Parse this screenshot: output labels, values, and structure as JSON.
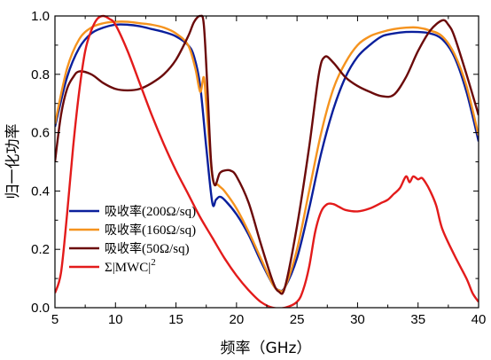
{
  "chart_data": {
    "type": "line",
    "xlabel": "频率（GHz）",
    "ylabel": "归一化功率",
    "xlim": [
      5,
      40
    ],
    "ylim": [
      0.0,
      1.0
    ],
    "x_ticks": [
      "5",
      "10",
      "15",
      "20",
      "25",
      "30",
      "35",
      "40"
    ],
    "y_ticks": [
      "0.0",
      "0.2",
      "0.4",
      "0.6",
      "0.8",
      "1.0"
    ],
    "grid": false,
    "legend_position": "bottom-left",
    "series": [
      {
        "name": "吸收率(200Ω/sq)",
        "color": "#0a1f9c",
        "points": [
          [
            5,
            0.62
          ],
          [
            6,
            0.79
          ],
          [
            7,
            0.89
          ],
          [
            8,
            0.94
          ],
          [
            9,
            0.96
          ],
          [
            10,
            0.97
          ],
          [
            11,
            0.97
          ],
          [
            12,
            0.965
          ],
          [
            13,
            0.955
          ],
          [
            14,
            0.945
          ],
          [
            15,
            0.93
          ],
          [
            16,
            0.9
          ],
          [
            16.5,
            0.86
          ],
          [
            17,
            0.76
          ],
          [
            17.5,
            0.55
          ],
          [
            18,
            0.36
          ],
          [
            18.3,
            0.37
          ],
          [
            18.6,
            0.38
          ],
          [
            19,
            0.37
          ],
          [
            20,
            0.32
          ],
          [
            21,
            0.25
          ],
          [
            22,
            0.16
          ],
          [
            23,
            0.08
          ],
          [
            23.5,
            0.06
          ],
          [
            24,
            0.07
          ],
          [
            25,
            0.17
          ],
          [
            26,
            0.34
          ],
          [
            27,
            0.53
          ],
          [
            28,
            0.68
          ],
          [
            29,
            0.79
          ],
          [
            30,
            0.86
          ],
          [
            31,
            0.9
          ],
          [
            32,
            0.93
          ],
          [
            33,
            0.94
          ],
          [
            34,
            0.945
          ],
          [
            35,
            0.945
          ],
          [
            36,
            0.94
          ],
          [
            37,
            0.92
          ],
          [
            38,
            0.86
          ],
          [
            39,
            0.74
          ],
          [
            40,
            0.57
          ]
        ]
      },
      {
        "name": "吸收率(160Ω/sq)",
        "color": "#f5931e",
        "points": [
          [
            5,
            0.63
          ],
          [
            6,
            0.82
          ],
          [
            7,
            0.92
          ],
          [
            8,
            0.96
          ],
          [
            9,
            0.975
          ],
          [
            10,
            0.98
          ],
          [
            11,
            0.98
          ],
          [
            12,
            0.975
          ],
          [
            13,
            0.97
          ],
          [
            14,
            0.96
          ],
          [
            15,
            0.94
          ],
          [
            16,
            0.9
          ],
          [
            16.6,
            0.82
          ],
          [
            17,
            0.74
          ],
          [
            17.3,
            0.79
          ],
          [
            17.5,
            0.7
          ],
          [
            18,
            0.45
          ],
          [
            18.5,
            0.42
          ],
          [
            19,
            0.4
          ],
          [
            20,
            0.34
          ],
          [
            21,
            0.26
          ],
          [
            22,
            0.17
          ],
          [
            23,
            0.08
          ],
          [
            23.5,
            0.06
          ],
          [
            24,
            0.07
          ],
          [
            25,
            0.2
          ],
          [
            26,
            0.4
          ],
          [
            27,
            0.6
          ],
          [
            28,
            0.75
          ],
          [
            29,
            0.84
          ],
          [
            30,
            0.9
          ],
          [
            31,
            0.93
          ],
          [
            32,
            0.945
          ],
          [
            33,
            0.955
          ],
          [
            34,
            0.96
          ],
          [
            35,
            0.96
          ],
          [
            36,
            0.95
          ],
          [
            37,
            0.93
          ],
          [
            38,
            0.87
          ],
          [
            39,
            0.76
          ],
          [
            40,
            0.59
          ]
        ]
      },
      {
        "name": "吸收率(50Ω/sq)",
        "color": "#6b0a0a",
        "points": [
          [
            5,
            0.5
          ],
          [
            5.5,
            0.66
          ],
          [
            6,
            0.75
          ],
          [
            6.5,
            0.79
          ],
          [
            7,
            0.81
          ],
          [
            8,
            0.8
          ],
          [
            9,
            0.77
          ],
          [
            10,
            0.75
          ],
          [
            11,
            0.745
          ],
          [
            12,
            0.75
          ],
          [
            13,
            0.77
          ],
          [
            14,
            0.8
          ],
          [
            15,
            0.85
          ],
          [
            16,
            0.93
          ],
          [
            16.5,
            0.98
          ],
          [
            17,
            1.0
          ],
          [
            17.3,
            0.97
          ],
          [
            17.6,
            0.75
          ],
          [
            17.9,
            0.5
          ],
          [
            18.2,
            0.42
          ],
          [
            18.6,
            0.46
          ],
          [
            19,
            0.47
          ],
          [
            19.5,
            0.47
          ],
          [
            20,
            0.45
          ],
          [
            21,
            0.36
          ],
          [
            22,
            0.22
          ],
          [
            23,
            0.09
          ],
          [
            23.5,
            0.055
          ],
          [
            24,
            0.07
          ],
          [
            25,
            0.28
          ],
          [
            26,
            0.55
          ],
          [
            26.8,
            0.8
          ],
          [
            27.3,
            0.86
          ],
          [
            28,
            0.84
          ],
          [
            29,
            0.79
          ],
          [
            30,
            0.76
          ],
          [
            31,
            0.74
          ],
          [
            32,
            0.725
          ],
          [
            33,
            0.73
          ],
          [
            34,
            0.79
          ],
          [
            35,
            0.88
          ],
          [
            36,
            0.95
          ],
          [
            37,
            0.985
          ],
          [
            37.5,
            0.97
          ],
          [
            38,
            0.93
          ],
          [
            39,
            0.8
          ],
          [
            40,
            0.66
          ]
        ]
      },
      {
        "name": "Σ|MWC|²",
        "color": "#e31b1b",
        "points": [
          [
            5,
            0.05
          ],
          [
            5.5,
            0.12
          ],
          [
            6,
            0.32
          ],
          [
            6.5,
            0.55
          ],
          [
            7,
            0.74
          ],
          [
            7.5,
            0.88
          ],
          [
            8,
            0.95
          ],
          [
            8.5,
            0.99
          ],
          [
            9,
            1.0
          ],
          [
            9.5,
            0.99
          ],
          [
            10,
            0.97
          ],
          [
            11,
            0.88
          ],
          [
            12,
            0.77
          ],
          [
            13,
            0.66
          ],
          [
            14,
            0.56
          ],
          [
            15,
            0.47
          ],
          [
            16,
            0.39
          ],
          [
            17,
            0.31
          ],
          [
            18,
            0.24
          ],
          [
            19,
            0.17
          ],
          [
            20,
            0.11
          ],
          [
            21,
            0.06
          ],
          [
            22,
            0.02
          ],
          [
            23,
            0.0
          ],
          [
            24,
            0.0
          ],
          [
            25,
            0.02
          ],
          [
            25.5,
            0.06
          ],
          [
            26,
            0.14
          ],
          [
            26.5,
            0.26
          ],
          [
            27,
            0.33
          ],
          [
            27.5,
            0.355
          ],
          [
            28,
            0.355
          ],
          [
            28.5,
            0.345
          ],
          [
            29,
            0.335
          ],
          [
            30,
            0.33
          ],
          [
            31,
            0.34
          ],
          [
            32,
            0.36
          ],
          [
            32.5,
            0.37
          ],
          [
            33,
            0.39
          ],
          [
            33.5,
            0.41
          ],
          [
            34,
            0.45
          ],
          [
            34.3,
            0.43
          ],
          [
            34.6,
            0.45
          ],
          [
            35,
            0.44
          ],
          [
            35.3,
            0.445
          ],
          [
            35.6,
            0.43
          ],
          [
            36,
            0.4
          ],
          [
            36.5,
            0.35
          ],
          [
            37,
            0.27
          ],
          [
            38,
            0.18
          ],
          [
            39,
            0.1
          ],
          [
            39.5,
            0.05
          ],
          [
            40,
            0.02
          ]
        ]
      }
    ],
    "legend": [
      {
        "prefix": "吸收率",
        "rest": "(200Ω/sq)",
        "sup": ""
      },
      {
        "prefix": "吸收率",
        "rest": "(160Ω/sq)",
        "sup": ""
      },
      {
        "prefix": "吸收率",
        "rest": "(50Ω/sq)",
        "sup": ""
      },
      {
        "prefix": "",
        "rest": "Σ|MWC|",
        "sup": "2"
      }
    ]
  }
}
